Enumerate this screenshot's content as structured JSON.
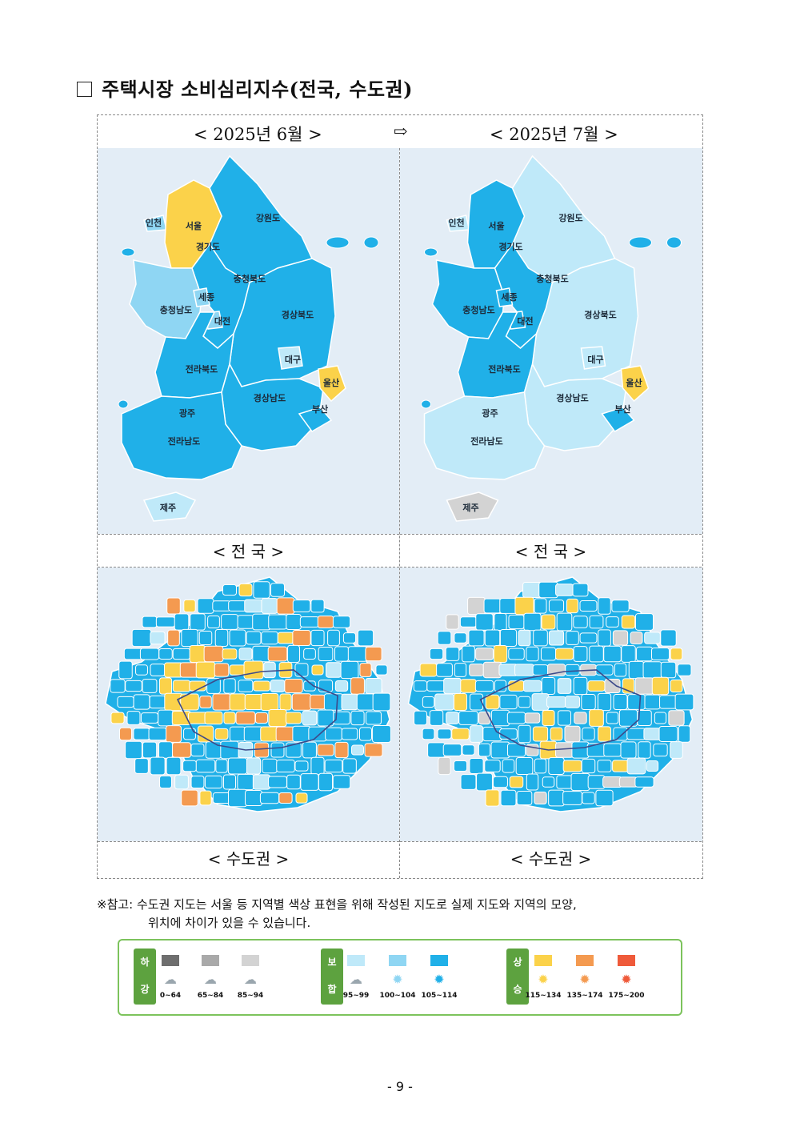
{
  "title": "주택시장 소비심리지수(전국, 수도권)",
  "header": {
    "left": "< 2025년 6월 >",
    "arrow": "⇨",
    "right": "< 2025년 7월 >"
  },
  "captions": {
    "national_left": "< 전   국 >",
    "national_right": "< 전   국 >",
    "metro_left": "< 수도권 >",
    "metro_right": "< 수도권 >"
  },
  "region_labels": {
    "incheon": "인천",
    "seoul": "서울",
    "gyeonggi": "경기도",
    "gangwon": "강원도",
    "chungbuk": "충청북도",
    "sejong": "세종",
    "chungnam": "충청남도",
    "daejeon": "대전",
    "gyeongbuk": "경상북도",
    "daegu": "대구",
    "jeonbuk": "전라북도",
    "ulsan": "울산",
    "gyeongnam": "경상남도",
    "busan": "부산",
    "gwangju": "광주",
    "jeonnam": "전라남도",
    "jeju": "제주"
  },
  "palette": {
    "fall_0_64": "#6e6e6e",
    "fall_65_84": "#a9a9a9",
    "fall_85_94": "#d3d3d3",
    "flat_95_99": "#bfe9f9",
    "flat_100_104": "#8fd6f3",
    "flat_105_114": "#20b0e8",
    "rise_115_134": "#fbd24a",
    "rise_135_174": "#f49a50",
    "rise_175_200": "#ef5a3a"
  },
  "national_june": {
    "incheon": "flat_100_104",
    "seoul": "rise_115_134",
    "gyeonggi": "rise_115_134",
    "gangwon": "flat_105_114",
    "chungbuk": "flat_105_114",
    "sejong": "flat_100_104",
    "chungnam": "flat_100_104",
    "daejeon": "flat_100_104",
    "gyeongbuk": "flat_105_114",
    "daegu": "flat_95_99",
    "jeonbuk": "flat_105_114",
    "ulsan": "rise_115_134",
    "gyeongnam": "flat_105_114",
    "busan": "flat_105_114",
    "gwangju": "flat_105_114",
    "jeonnam": "flat_105_114",
    "jeju": "flat_95_99"
  },
  "national_july": {
    "incheon": "flat_95_99",
    "seoul": "flat_105_114",
    "gyeonggi": "flat_105_114",
    "gangwon": "flat_95_99",
    "chungbuk": "flat_105_114",
    "sejong": "flat_105_114",
    "chungnam": "flat_105_114",
    "daejeon": "flat_105_114",
    "gyeongbuk": "flat_95_99",
    "daegu": "flat_95_99",
    "jeonbuk": "flat_105_114",
    "ulsan": "rise_115_134",
    "gyeongnam": "flat_95_99",
    "busan": "flat_105_114",
    "gwangju": "flat_95_99",
    "jeonnam": "flat_95_99",
    "jeju": "fall_85_94"
  },
  "note": {
    "line1": "※참고: 수도권 지도는 서울 등 지역별 색상 표현을 위해 작성된 지도로 실제 지도와 지역의 모양,",
    "line2": "위치에 차이가 있을 수 있습니다."
  },
  "legend": {
    "fall": {
      "c1": "하",
      "c2": "강"
    },
    "flat": {
      "c1": "보",
      "c2": "합"
    },
    "rise": {
      "c1": "상",
      "c2": "승"
    },
    "ranges": [
      "0~64",
      "65~84",
      "85~94",
      "95~99",
      "100~104",
      "105~114",
      "115~134",
      "135~174",
      "175~200"
    ],
    "icons": [
      "storm-icon",
      "rain-cloud-icon",
      "cloud-icon",
      "cloud-icon",
      "sun-icon",
      "sun-icon",
      "sun-icon",
      "sun-icon",
      "sun-icon"
    ]
  },
  "page_number": "- 9 -"
}
